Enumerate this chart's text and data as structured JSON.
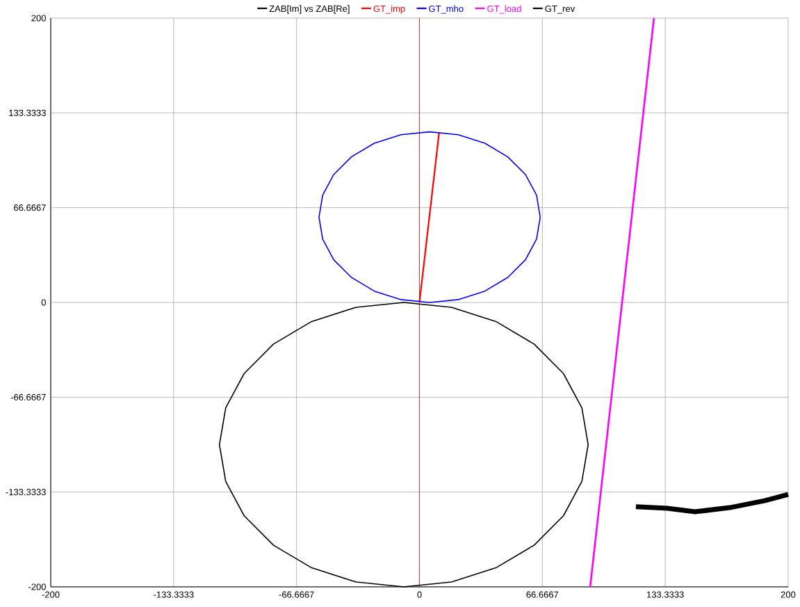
{
  "chart_data": {
    "type": "line",
    "xlim": [
      -200,
      200
    ],
    "ylim": [
      -200,
      200
    ],
    "xticks": [
      -200,
      -133.3333,
      -66.6667,
      0,
      66.6667,
      133.3333,
      200
    ],
    "yticks": [
      -200,
      -133.3333,
      -66.6667,
      0,
      66.6667,
      133.3333,
      200
    ],
    "grid": true,
    "legend": "top",
    "ref_lines": [
      {
        "axis": "x",
        "value": 0,
        "color": "#ff0000"
      }
    ],
    "series": [
      {
        "name": "ZAB[Im] vs ZAB[Re]",
        "color": "#000000",
        "x": [
          117.4,
          134.4,
          149.5,
          168.3,
          187.2,
          200
        ],
        "values": [
          -143.6,
          -144.7,
          -147.2,
          -144.3,
          -139.4,
          -135
        ]
      },
      {
        "name": "GT_imp",
        "color": "#ff0000",
        "x": [
          0,
          10.7
        ],
        "values": [
          0,
          119.8
        ]
      },
      {
        "name": "GT_mho",
        "color": "#0000ff",
        "x": [
          65.5,
          63.5,
          57.5,
          47.9,
          35.5,
          21.0,
          5.5,
          -10.0,
          -24.5,
          -36.9,
          -46.5,
          -52.5,
          -54.5,
          -52.5,
          -46.5,
          -36.9,
          -24.5,
          -10.0,
          5.5,
          21.0,
          35.5,
          47.9,
          57.5,
          63.5,
          65.5,
          63.5
        ],
        "values": [
          60,
          75.5,
          90,
          102.4,
          112,
          118,
          120,
          118,
          112,
          102.4,
          90,
          75.5,
          60,
          44.5,
          30,
          17.6,
          8,
          2,
          0,
          2,
          8,
          17.6,
          30,
          44.5,
          60,
          75.5
        ]
      },
      {
        "name": "GT_load",
        "color": "#ff00ff",
        "x": [
          92.6,
          127.2
        ],
        "values": [
          -200,
          200
        ]
      },
      {
        "name": "GT_rev",
        "color": "#000000",
        "x": [
          91.5,
          88.1,
          78.1,
          62.2,
          41.5,
          17.4,
          -8.5,
          -34.4,
          -58.5,
          -79.2,
          -95.1,
          -105.1,
          -108.5,
          -105.1,
          -95.1,
          -79.2,
          -58.5,
          -34.4,
          -8.5,
          17.4,
          41.5,
          62.2,
          78.1,
          88.1,
          91.5,
          88.1
        ],
        "values": [
          -100,
          -74.1,
          -50,
          -29.3,
          -13.4,
          -3.4,
          0,
          -3.4,
          -13.4,
          -29.3,
          -50,
          -74.1,
          -100,
          -125.9,
          -150,
          -170.7,
          -186.6,
          -196.6,
          -200,
          -196.6,
          -186.6,
          -170.7,
          -150,
          -125.9,
          -100,
          -74.1
        ]
      }
    ]
  }
}
